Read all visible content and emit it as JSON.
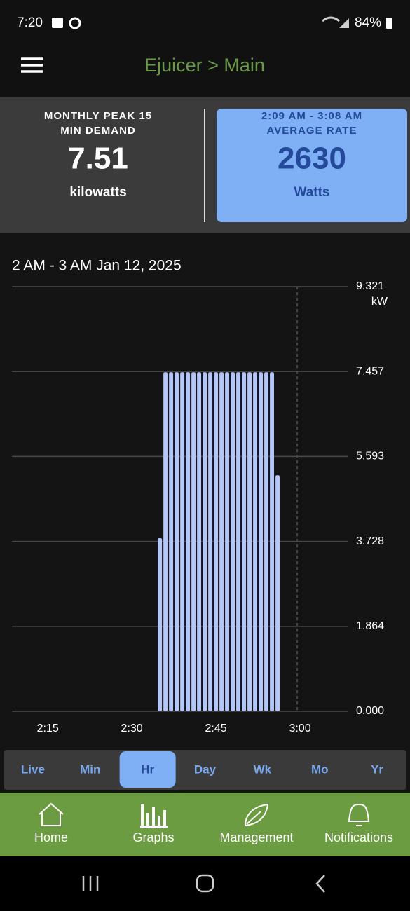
{
  "status_bar": {
    "time": "7:20",
    "battery": "84%"
  },
  "header": {
    "title": "Ejuicer > Main"
  },
  "cards": [
    {
      "title_lines": [
        "MONTHLY PEAK 15",
        "MIN DEMAND"
      ],
      "value": "7.51",
      "unit": "kilowatts"
    },
    {
      "title_lines": [
        "2:09 AM - 3:08 AM",
        "AVERAGE RATE"
      ],
      "value": "2630",
      "unit": "Watts"
    }
  ],
  "chart_data": {
    "type": "bar",
    "title": "2 AM - 3 AM Jan 12, 2025",
    "y_unit": "kW",
    "color": "#b4c5fb",
    "grid": true,
    "x": [
      35,
      36,
      37,
      38,
      39,
      40,
      41,
      42,
      43,
      44,
      45,
      46,
      47,
      48,
      49,
      50,
      51,
      52,
      53,
      54,
      55,
      56
    ],
    "values": [
      3.8,
      7.44,
      7.44,
      7.44,
      7.44,
      7.44,
      7.44,
      7.44,
      7.44,
      7.44,
      7.44,
      7.44,
      7.44,
      7.44,
      7.44,
      7.44,
      7.44,
      7.44,
      7.44,
      7.44,
      7.44,
      5.18
    ],
    "xlim": [
      8.6,
      68.5
    ],
    "xticks": [
      {
        "value": 15,
        "label": "2:15"
      },
      {
        "value": 30,
        "label": "2:30"
      },
      {
        "value": 45,
        "label": "2:45"
      },
      {
        "value": 60,
        "label": "3:00"
      }
    ],
    "ylim": [
      0,
      9.321
    ],
    "yticks": [
      {
        "value": 0,
        "label": "0.000"
      },
      1.864,
      3.728,
      5.593,
      7.457,
      9.321
    ]
  },
  "tabs": [
    "Live",
    "Min",
    "Hr",
    "Day",
    "Wk",
    "Mo",
    "Yr"
  ],
  "selected_tab": 2,
  "nav": [
    "Home",
    "Graphs",
    "Management",
    "Notifications"
  ]
}
